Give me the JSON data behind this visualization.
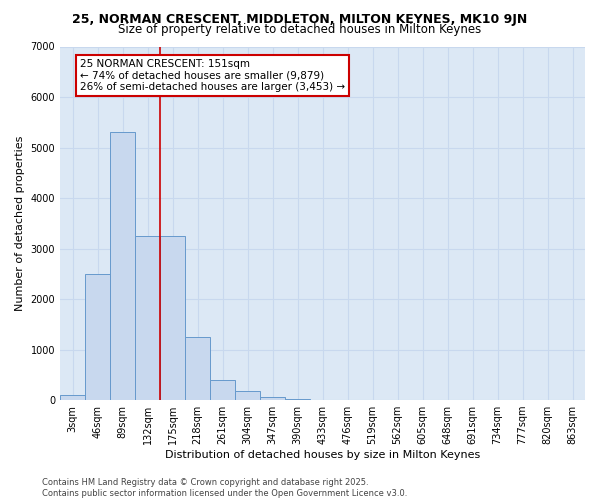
{
  "title1": "25, NORMAN CRESCENT, MIDDLETON, MILTON KEYNES, MK10 9JN",
  "title2": "Size of property relative to detached houses in Milton Keynes",
  "xlabel": "Distribution of detached houses by size in Milton Keynes",
  "ylabel": "Number of detached properties",
  "categories": [
    "3sqm",
    "46sqm",
    "89sqm",
    "132sqm",
    "175sqm",
    "218sqm",
    "261sqm",
    "304sqm",
    "347sqm",
    "390sqm",
    "433sqm",
    "476sqm",
    "519sqm",
    "562sqm",
    "605sqm",
    "648sqm",
    "691sqm",
    "734sqm",
    "777sqm",
    "820sqm",
    "863sqm"
  ],
  "values": [
    100,
    2500,
    5300,
    3250,
    3250,
    1250,
    400,
    170,
    60,
    15,
    5,
    2,
    1,
    0,
    0,
    0,
    0,
    0,
    0,
    0,
    0
  ],
  "bar_color": "#c8d8ee",
  "bar_edge_color": "#6699cc",
  "vline_x_index": 3.5,
  "vline_color": "#cc0000",
  "annotation_line1": "25 NORMAN CRESCENT: 151sqm",
  "annotation_line2": "← 74% of detached houses are smaller (9,879)",
  "annotation_line3": "26% of semi-detached houses are larger (3,453) →",
  "annotation_box_color": "#cc0000",
  "ylim": [
    0,
    7000
  ],
  "yticks": [
    0,
    1000,
    2000,
    3000,
    4000,
    5000,
    6000,
    7000
  ],
  "grid_color": "#c8d8ee",
  "bg_color": "#dce8f5",
  "footer": "Contains HM Land Registry data © Crown copyright and database right 2025.\nContains public sector information licensed under the Open Government Licence v3.0.",
  "title1_fontsize": 9,
  "title2_fontsize": 8.5,
  "tick_fontsize": 7,
  "xlabel_fontsize": 8,
  "ylabel_fontsize": 8,
  "annotation_fontsize": 7.5,
  "footer_fontsize": 6
}
